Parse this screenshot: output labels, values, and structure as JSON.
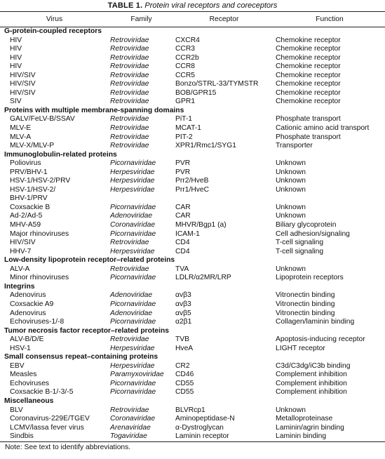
{
  "caption": {
    "label": "TABLE 1.",
    "title": "Protein viral receptors and coreceptors"
  },
  "headers": [
    "Virus",
    "Family",
    "Receptor",
    "Function"
  ],
  "sections": [
    {
      "title": "G-protein-coupled receptors",
      "rows": [
        [
          "HIV",
          "Retroviridae",
          "CXCR4",
          "Chemokine receptor"
        ],
        [
          "HIV",
          "Retroviridae",
          "CCR3",
          "Chemokine receptor"
        ],
        [
          "HIV",
          "Retroviridae",
          "CCR2b",
          "Chemokine receptor"
        ],
        [
          "HIV",
          "Retroviridae",
          "CCR8",
          "Chemokine receptor"
        ],
        [
          "HIV/SIV",
          "Retroviridae",
          "CCR5",
          "Chemokine receptor"
        ],
        [
          "HIV/SIV",
          "Retroviridae",
          "Bonzo/STRL-33/TYMSTR",
          "Chemokine receptor"
        ],
        [
          "HIV/SIV",
          "Retroviridae",
          "BOB/GPR15",
          "Chemokine receptor"
        ],
        [
          "SIV",
          "Retroviridae",
          "GPR1",
          "Chemokine receptor"
        ]
      ]
    },
    {
      "title": "Proteins with multiple membrane-spanning domains",
      "rows": [
        [
          "GALV/FeLV-B/SSAV",
          "Retroviridae",
          "PiT-1",
          "Phosphate transport"
        ],
        [
          "MLV-E",
          "Retroviridae",
          "MCAT-1",
          "Cationic amino acid transport"
        ],
        [
          "MLV-A",
          "Retroviridae",
          "PIT-2",
          "Phosphate transport"
        ],
        [
          "MLV-X/MLV-P",
          "Retroviridae",
          "XPR1/Rmc1/SYG1",
          "Transporter"
        ]
      ]
    },
    {
      "title": "Immunoglobulin-related proteins",
      "rows": [
        [
          "Poliovirus",
          "Picornaviridae",
          "PVR",
          "Unknown"
        ],
        [
          "PRV/BHV-1",
          "Herpesviridae",
          "PVR",
          "Unknown"
        ],
        [
          "HSV-1/HSV-2/PRV",
          "Herpesviridae",
          "Prr2/HveB",
          "Unknown"
        ],
        [
          "HSV-1/HSV-2/",
          "Herpesviridae",
          "Prr1/HveC",
          "Unknown"
        ],
        [
          "   BHV-1/PRV",
          "",
          "",
          ""
        ],
        [
          "Coxsackie B",
          "Picornaviridae",
          "CAR",
          "Unknown"
        ],
        [
          "Ad-2/Ad-5",
          "Adenoviridae",
          "CAR",
          "Unknown"
        ],
        [
          "MHV-A59",
          "Coronaviridae",
          "MHVR/Bgp1 (a)",
          "Biliary glycoprotein"
        ],
        [
          "Major rhinoviruses",
          "Picornaviridae",
          "ICAM-1",
          "Cell adhesion/signaling"
        ],
        [
          "HIV/SIV",
          "Retroviridae",
          "CD4",
          "T-cell signaling"
        ],
        [
          "HHV-7",
          "Herpesviridae",
          "CD4",
          "T-cell signaling"
        ]
      ]
    },
    {
      "title": "Low-density lipoprotein receptor–related proteins",
      "rows": [
        [
          "ALV-A",
          "Retroviridae",
          "TVA",
          "Unknown"
        ],
        [
          "Minor rhinoviruses",
          "Picornaviridae",
          "LDLR/α2MR/LRP",
          "Lipoprotein receptors"
        ]
      ]
    },
    {
      "title": "Integrins",
      "rows": [
        [
          "Adenovirus",
          "Adenoviridae",
          "αvβ3",
          "Vitronectin binding"
        ],
        [
          "Coxsackie A9",
          "Picornaviridae",
          "αvβ3",
          "Vitronectin binding"
        ],
        [
          "Adenovirus",
          "Adenoviridae",
          "αvβ5",
          "Vitronectin binding"
        ],
        [
          "Echoviruses-1/-8",
          "Picornaviridae",
          "α2β1",
          "Collagen/laminin binding"
        ]
      ]
    },
    {
      "title": "Tumor necrosis factor receptor–related proteins",
      "rows": [
        [
          "ALV-B/D/E",
          "Retroviridae",
          "TVB",
          "Apoptosis-inducing receptor"
        ],
        [
          "HSV-1",
          "Herpesviridae",
          "HveA",
          "LIGHT receptor"
        ]
      ]
    },
    {
      "title": "Small consensus repeat–containing proteins",
      "rows": [
        [
          "EBV",
          "Herpesviridae",
          "CR2",
          "C3d/C3dg/iC3b binding"
        ],
        [
          "Measles",
          "Paramyxoviridae",
          "CD46",
          "Complement inhibition"
        ],
        [
          "Echoviruses",
          "Picornaviridae",
          "CD55",
          "Complement inhibition"
        ],
        [
          "Coxsackie B-1/-3/-5",
          "Picornaviridae",
          "CD55",
          "Complement inhibition"
        ]
      ]
    },
    {
      "title": "Miscellaneous",
      "rows": [
        [
          "BLV",
          "Retroviridae",
          "BLVRcp1",
          "Unknown"
        ],
        [
          "Coronavirus-229E/TGEV",
          "Coronaviridae",
          "Aminopeptidase-N",
          "Metalloproteinase"
        ],
        [
          "LCMV/lassa fever virus",
          "Arenaviridae",
          "α-Dystroglycan",
          "Laminin/agrin binding"
        ],
        [
          "Sindbis",
          "Togaviridae",
          "Laminin receptor",
          "Laminin binding"
        ]
      ]
    }
  ],
  "note": "Note: See text to identify abbreviations."
}
